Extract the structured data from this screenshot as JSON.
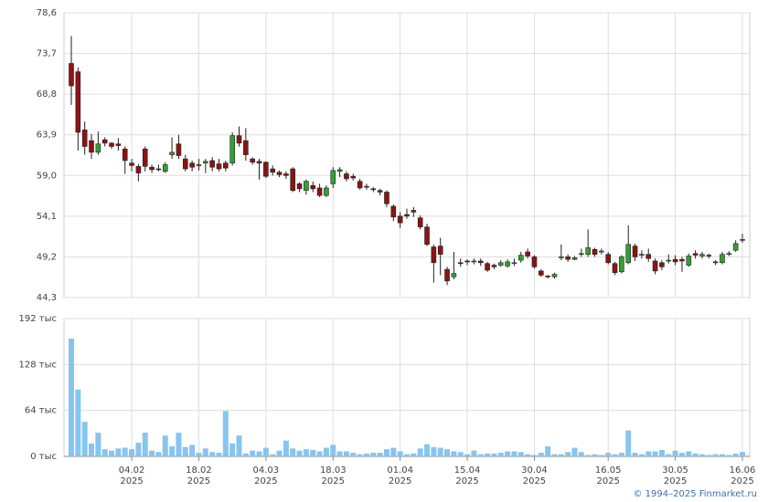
{
  "chart_data": {
    "type": "candlestick",
    "credit": "© 1994–2025 Finmarket.ru",
    "categories": [
      null,
      null,
      null,
      null,
      null,
      null,
      null,
      null,
      null,
      "04.02\n2025",
      null,
      null,
      null,
      null,
      null,
      null,
      null,
      null,
      null,
      "18.02\n2025",
      null,
      null,
      null,
      null,
      null,
      null,
      null,
      null,
      null,
      "04.03\n2025",
      null,
      null,
      null,
      null,
      null,
      null,
      null,
      null,
      null,
      "18.03\n2025",
      null,
      null,
      null,
      null,
      null,
      null,
      null,
      null,
      null,
      "01.04\n2025",
      null,
      null,
      null,
      null,
      null,
      null,
      null,
      null,
      null,
      "15.04\n2025",
      null,
      null,
      null,
      null,
      null,
      null,
      null,
      null,
      null,
      "30.04\n2025",
      null,
      null,
      null,
      null,
      null,
      null,
      null,
      null,
      null,
      null,
      "16.05\n2025",
      null,
      null,
      null,
      null,
      null,
      null,
      null,
      null,
      null,
      "30.05\n2025",
      null,
      null,
      null,
      null,
      null,
      null,
      null,
      null,
      null,
      "16.06\n2025"
    ],
    "open": [
      72.5,
      71.5,
      64.5,
      63.2,
      61.8,
      63.3,
      62.9,
      62.8,
      62.2,
      60.5,
      60.1,
      62.2,
      60.0,
      59.8,
      59.5,
      61.5,
      62.8,
      61.0,
      60.5,
      60.3,
      60.5,
      60.8,
      60.4,
      60.5,
      60.5,
      63.8,
      63.2,
      61.0,
      60.7,
      60.6,
      59.8,
      59.4,
      59.2,
      59.8,
      58.0,
      57.2,
      57.8,
      57.5,
      56.6,
      58.0,
      59.5,
      59.2,
      58.9,
      58.3,
      57.7,
      57.4,
      57.2,
      57.0,
      55.3,
      54.1,
      54.3,
      54.8,
      53.9,
      52.8,
      50.4,
      50.5,
      47.7,
      46.8,
      48.5,
      48.7,
      48.6,
      48.7,
      48.4,
      48.2,
      48.2,
      48.1,
      48.4,
      48.8,
      49.8,
      49.2,
      47.5,
      46.9,
      46.8,
      49.1,
      49.2,
      48.9,
      49.5,
      49.5,
      50.1,
      49.8,
      49.5,
      48.4,
      47.4,
      48.5,
      50.5,
      49.4,
      49.5,
      48.7,
      48.5,
      48.7,
      48.9,
      48.9,
      48.2,
      49.6,
      49.3,
      49.4,
      48.6,
      48.5,
      49.5,
      50.0,
      51.2
    ],
    "high": [
      75.8,
      72.0,
      65.5,
      64.0,
      64.3,
      63.6,
      63.0,
      63.5,
      62.5,
      61.0,
      60.4,
      62.5,
      60.3,
      60.3,
      60.6,
      63.6,
      63.9,
      61.5,
      60.8,
      61.0,
      61.0,
      61.2,
      61.0,
      60.8,
      64.2,
      64.9,
      64.7,
      61.2,
      61.0,
      60.7,
      60.2,
      59.6,
      59.5,
      60.0,
      58.2,
      58.5,
      58.3,
      58.0,
      57.8,
      60.0,
      60.0,
      59.5,
      59.2,
      58.6,
      58.0,
      57.6,
      57.4,
      57.2,
      55.5,
      54.6,
      55.0,
      55.2,
      54.2,
      53.2,
      50.7,
      51.5,
      48.0,
      49.8,
      49.0,
      48.9,
      49.0,
      49.0,
      48.6,
      48.4,
      48.8,
      48.9,
      49.0,
      49.8,
      50.2,
      49.4,
      47.7,
      47.0,
      47.3,
      50.7,
      49.5,
      49.3,
      50.2,
      52.5,
      50.3,
      50.2,
      49.8,
      48.6,
      49.4,
      53.0,
      50.8,
      50.0,
      50.2,
      49.0,
      48.8,
      49.5,
      49.4,
      49.2,
      49.6,
      50.0,
      49.8,
      49.6,
      48.8,
      49.8,
      49.9,
      51.2,
      52.0
    ],
    "low": [
      67.5,
      62.0,
      61.5,
      61.0,
      61.5,
      62.5,
      62.2,
      62.0,
      59.2,
      59.5,
      58.3,
      59.5,
      59.3,
      59.5,
      59.3,
      61.0,
      61.0,
      59.5,
      59.5,
      59.6,
      59.3,
      59.5,
      59.5,
      59.5,
      60.2,
      62.5,
      60.8,
      60.3,
      58.5,
      58.7,
      59.0,
      58.8,
      58.6,
      57.0,
      57.0,
      56.7,
      57.0,
      56.4,
      56.4,
      57.5,
      58.8,
      58.3,
      58.4,
      57.3,
      57.3,
      57.0,
      56.6,
      55.2,
      53.5,
      52.7,
      53.8,
      54.0,
      52.5,
      50.5,
      46.1,
      47.0,
      45.8,
      46.5,
      48.0,
      48.2,
      48.3,
      48.1,
      47.4,
      47.7,
      48.0,
      47.9,
      48.1,
      48.5,
      49.0,
      47.8,
      46.8,
      46.6,
      46.6,
      48.8,
      48.6,
      48.8,
      49.2,
      49.2,
      49.2,
      49.5,
      48.3,
      47.0,
      47.2,
      48.3,
      48.7,
      49.0,
      48.6,
      47.1,
      47.6,
      48.4,
      48.2,
      47.4,
      48.0,
      49.0,
      49.0,
      49.0,
      48.2,
      48.3,
      49.3,
      49.8,
      50.9
    ],
    "close": [
      69.8,
      64.2,
      62.5,
      61.8,
      62.8,
      62.9,
      62.5,
      62.6,
      60.8,
      60.2,
      59.3,
      60.1,
      59.7,
      59.7,
      60.3,
      61.8,
      61.4,
      59.8,
      60.0,
      60.2,
      60.7,
      60.0,
      59.8,
      59.9,
      63.8,
      62.9,
      61.5,
      60.6,
      60.5,
      58.9,
      59.4,
      59.1,
      59.0,
      57.2,
      57.4,
      58.3,
      57.4,
      56.6,
      57.5,
      59.6,
      59.7,
      58.6,
      58.7,
      57.5,
      57.6,
      57.3,
      57.0,
      55.6,
      54.0,
      53.3,
      54.1,
      54.6,
      52.8,
      50.7,
      48.5,
      49.5,
      46.3,
      47.2,
      48.4,
      48.6,
      48.7,
      48.5,
      47.6,
      48.0,
      48.5,
      48.6,
      48.5,
      49.4,
      49.3,
      48.0,
      47.0,
      46.8,
      47.1,
      49.2,
      48.9,
      49.1,
      49.6,
      50.3,
      49.5,
      49.9,
      48.5,
      47.3,
      49.2,
      50.7,
      49.2,
      49.5,
      49.0,
      47.5,
      48.0,
      48.8,
      48.6,
      48.7,
      49.3,
      49.4,
      49.5,
      49.3,
      48.5,
      49.5,
      49.6,
      50.8,
      51.3
    ],
    "volume": [
      164,
      93,
      48,
      18,
      33,
      10,
      8,
      11,
      12,
      10,
      19,
      33,
      8,
      6,
      29,
      14,
      33,
      13,
      16,
      5,
      11,
      6,
      5,
      63,
      18,
      29,
      4,
      8,
      7,
      12,
      3,
      8,
      22,
      11,
      8,
      10,
      9,
      7,
      12,
      16,
      7,
      7,
      5,
      3,
      4,
      5,
      5,
      10,
      12,
      7,
      3,
      4,
      11,
      17,
      13,
      12,
      10,
      7,
      6,
      3,
      8,
      3,
      4,
      4,
      5,
      7,
      7,
      6,
      3,
      2,
      5,
      14,
      3,
      3,
      6,
      12,
      6,
      2,
      3,
      2,
      5,
      3,
      5,
      36,
      5,
      3,
      7,
      7,
      9,
      3,
      8,
      5,
      7,
      4,
      3,
      2,
      3,
      3,
      2,
      4,
      6
    ],
    "up_color": "#33a033",
    "down_color": "#8b1414",
    "volume_color": "#86c5f0",
    "ylim": [
      44.3,
      78.6
    ],
    "yticks": [
      {
        "value": 44.3,
        "label": "44,3"
      },
      {
        "value": 49.2,
        "label": "49,2"
      },
      {
        "value": 54.1,
        "label": "54,1"
      },
      {
        "value": 59.0,
        "label": "59,0"
      },
      {
        "value": 63.9,
        "label": "63,9"
      },
      {
        "value": 68.8,
        "label": "68,8"
      },
      {
        "value": 73.7,
        "label": "73,7"
      },
      {
        "value": 78.6,
        "label": "78,6"
      }
    ],
    "y2lim": [
      0,
      192
    ],
    "y2ticks": [
      {
        "value": 0,
        "label": "0 тыс"
      },
      {
        "value": 64,
        "label": "64 тыс"
      },
      {
        "value": 128,
        "label": "128 тыс"
      },
      {
        "value": 192,
        "label": "192 тыс"
      }
    ],
    "grid": true
  }
}
